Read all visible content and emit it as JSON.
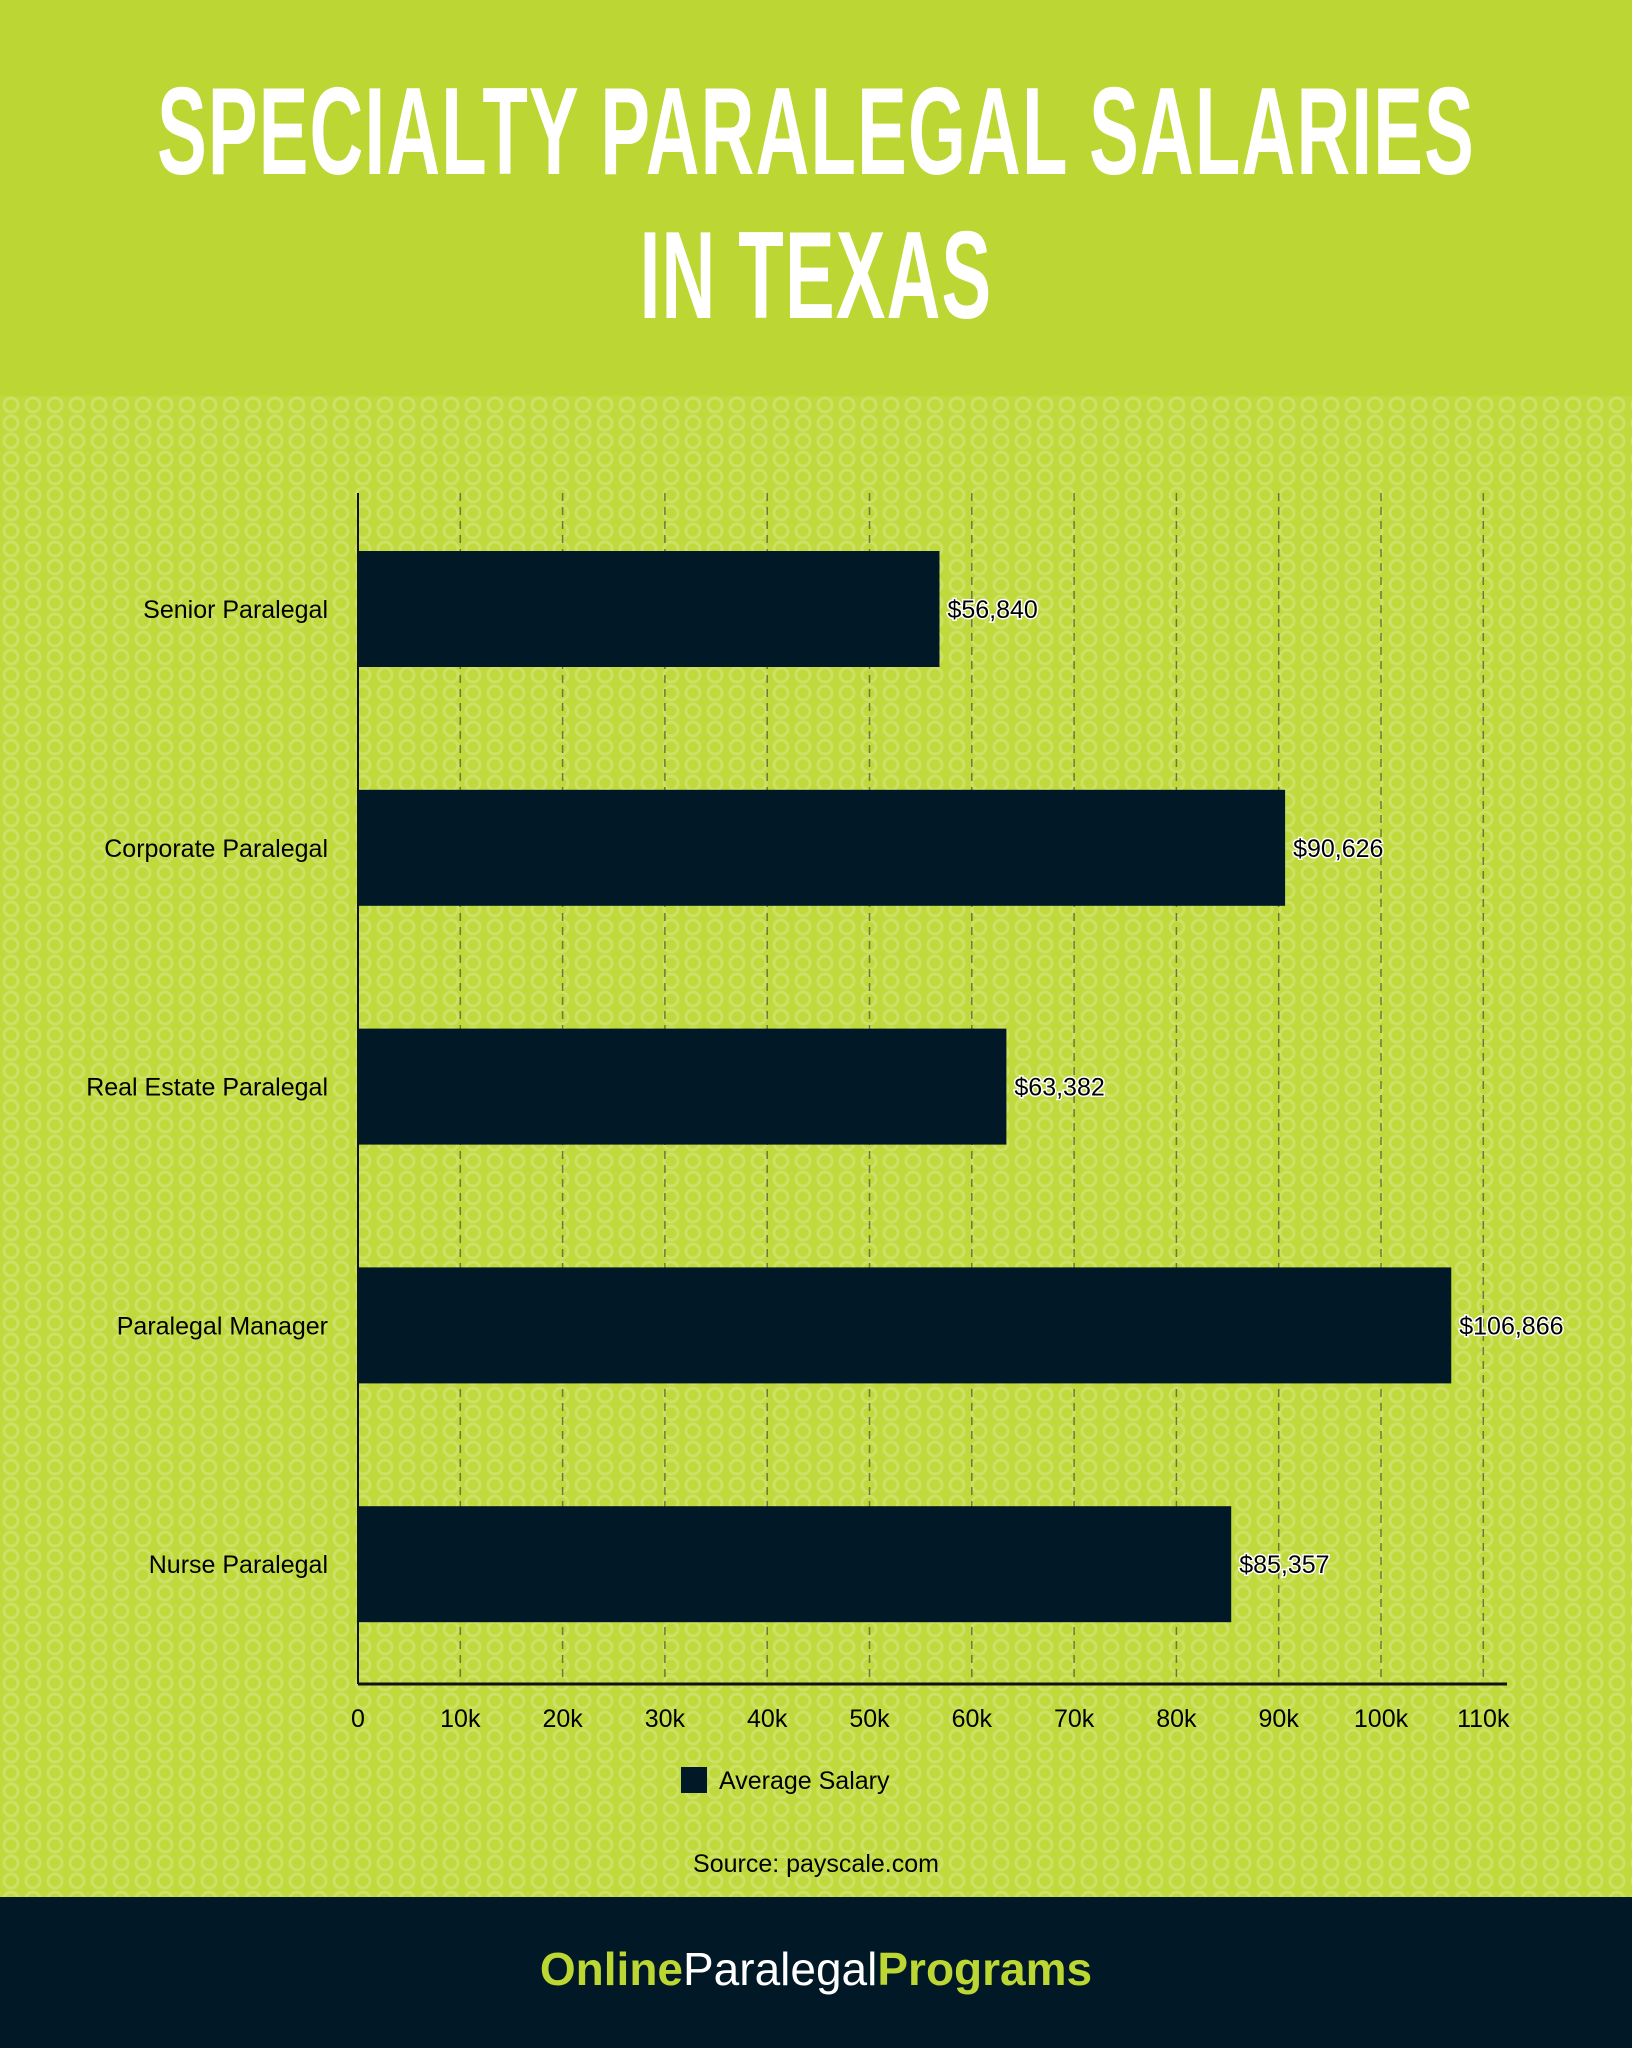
{
  "header": {
    "title_line1": "SPECIALTY PARALEGAL SALARIES",
    "title_line2": "IN TEXAS"
  },
  "chart_data": {
    "type": "bar",
    "orientation": "horizontal",
    "categories": [
      "Senior Paralegal",
      "Corporate Paralegal",
      "Real Estate Paralegal",
      "Paralegal Manager",
      "Nurse Paralegal"
    ],
    "series": [
      {
        "name": "Average Salary",
        "values": [
          56840,
          90626,
          63382,
          106866,
          85357
        ],
        "color": "#011826"
      }
    ],
    "data_labels": [
      "$56,840",
      "$90,626",
      "$63,382",
      "$106,866",
      "$85,357"
    ],
    "x_ticks": [
      0,
      10000,
      20000,
      30000,
      40000,
      50000,
      60000,
      70000,
      80000,
      90000,
      100000,
      110000
    ],
    "x_tick_labels": [
      "0",
      "10k",
      "20k",
      "30k",
      "40k",
      "50k",
      "60k",
      "70k",
      "80k",
      "90k",
      "100k",
      "110k"
    ],
    "xlim": [
      0,
      112500
    ],
    "grid": "vertical dashed",
    "legend_placement": "bottom"
  },
  "source": "Source: payscale.com",
  "footer": {
    "logo_part1": "Online",
    "logo_part2": "Paralegal",
    "logo_part3": "Programs"
  },
  "colors": {
    "accent": "#bcd733",
    "dark": "#011826"
  }
}
